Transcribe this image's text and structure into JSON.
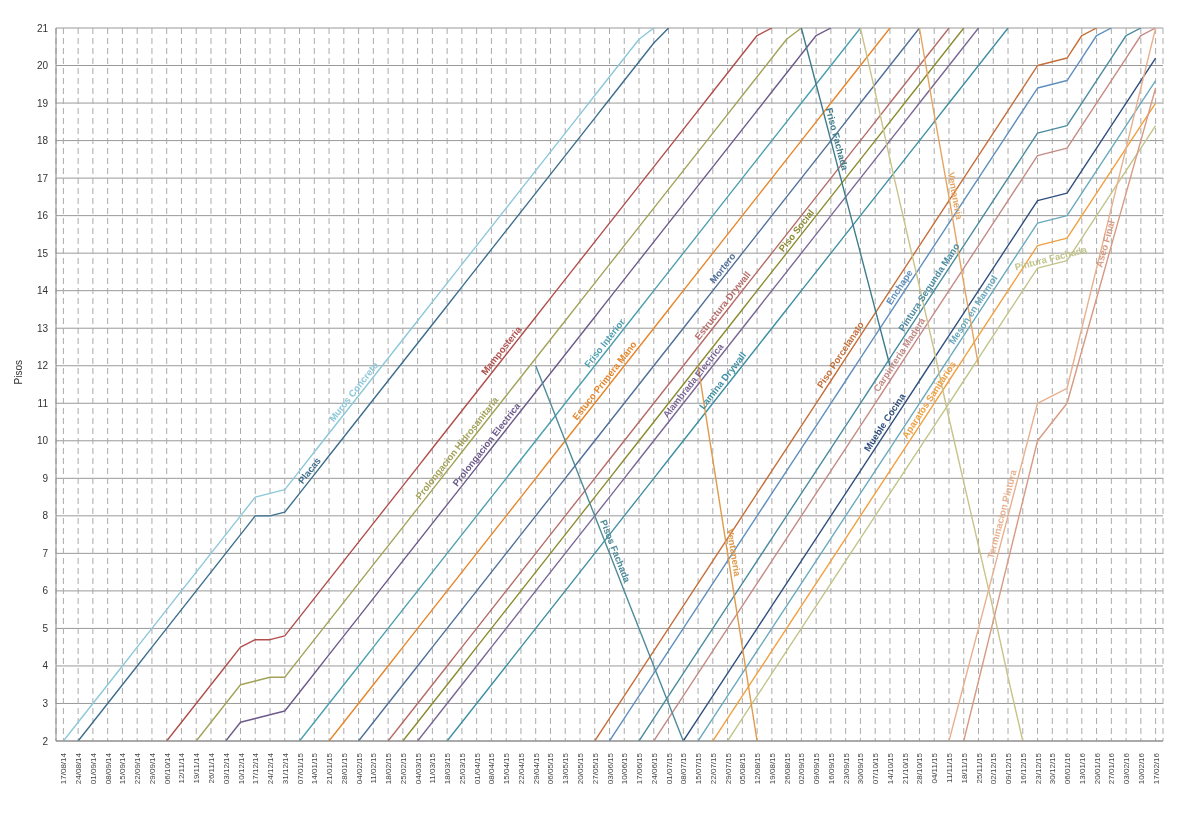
{
  "chart_data": {
    "type": "line",
    "ylabel": "Pisos",
    "ylim": [
      2,
      21
    ],
    "yticks": [
      2,
      3,
      4,
      5,
      6,
      7,
      8,
      9,
      10,
      11,
      12,
      13,
      14,
      15,
      16,
      17,
      18,
      19,
      20,
      21
    ],
    "grid": true,
    "categories": [
      "17/08/14",
      "24/08/14",
      "01/09/14",
      "08/09/14",
      "15/09/14",
      "22/09/14",
      "29/09/14",
      "06/10/14",
      "12/11/14",
      "19/11/14",
      "26/11/14",
      "03/12/14",
      "10/12/14",
      "17/12/14",
      "24/12/14",
      "31/12/14",
      "07/01/15",
      "14/01/15",
      "21/01/15",
      "28/01/15",
      "04/02/15",
      "11/02/15",
      "18/02/15",
      "25/02/15",
      "04/03/15",
      "11/03/15",
      "18/03/15",
      "25/03/15",
      "01/04/15",
      "08/04/15",
      "15/04/15",
      "22/04/15",
      "29/04/15",
      "06/05/15",
      "13/05/15",
      "20/05/15",
      "27/05/15",
      "03/06/15",
      "10/06/15",
      "17/06/15",
      "24/06/15",
      "01/07/15",
      "08/07/15",
      "15/07/15",
      "22/07/15",
      "29/07/15",
      "05/08/15",
      "12/08/15",
      "19/08/15",
      "26/08/15",
      "02/09/15",
      "09/09/15",
      "16/09/15",
      "23/09/15",
      "30/09/15",
      "07/10/15",
      "14/10/15",
      "21/10/15",
      "28/10/15",
      "04/11/15",
      "11/11/15",
      "18/11/15",
      "25/11/15",
      "02/12/15",
      "09/12/15",
      "16/12/15",
      "23/12/15",
      "30/12/15",
      "06/01/16",
      "13/01/16",
      "20/01/16",
      "27/01/16",
      "03/02/16",
      "10/02/16",
      "17/02/16"
    ],
    "series": [
      {
        "name": "Muros Concreto",
        "color": "#8cc8d8",
        "values": [
          2,
          2.5,
          3,
          3.5,
          4,
          4.5,
          5,
          5.5,
          6,
          6.5,
          7,
          7.5,
          8,
          8.5,
          8.6,
          8.7,
          9.2,
          9.7,
          10.2,
          10.7,
          11.2,
          11.7,
          12.2,
          12.7,
          13.2,
          13.7,
          14.2,
          14.7,
          15.2,
          15.7,
          16.2,
          16.7,
          17.2,
          17.7,
          18.2,
          18.7,
          19.2,
          19.7,
          20.2,
          20.7,
          21,
          null,
          null,
          null,
          null,
          null,
          null,
          null,
          null,
          null,
          null,
          null,
          null,
          null,
          null,
          null,
          null,
          null,
          null,
          null,
          null,
          null,
          null,
          null,
          null,
          null,
          null,
          null,
          null,
          null,
          null,
          null,
          null,
          null,
          null
        ]
      },
      {
        "name": "Placas",
        "color": "#3d6e8e",
        "values": [
          null,
          2,
          2.5,
          3,
          3.5,
          4,
          4.5,
          5,
          5.5,
          6,
          6.5,
          7,
          7.5,
          8,
          8,
          8.1,
          8.6,
          9.1,
          9.6,
          10.1,
          10.6,
          11.1,
          11.6,
          12.1,
          12.6,
          13.1,
          13.6,
          14.1,
          14.6,
          15.1,
          15.6,
          16.1,
          16.6,
          17.1,
          17.6,
          18.1,
          18.6,
          19.1,
          19.6,
          20.1,
          20.6,
          21,
          null,
          null,
          null,
          null,
          null,
          null,
          null,
          null,
          null,
          null,
          null,
          null,
          null,
          null,
          null,
          null,
          null,
          null,
          null,
          null,
          null,
          null,
          null,
          null,
          null,
          null,
          null,
          null,
          null,
          null,
          null,
          null,
          null
        ]
      },
      {
        "name": "Mamposteria",
        "color": "#b04e4c",
        "values": [
          null,
          null,
          null,
          null,
          null,
          null,
          null,
          2,
          2.5,
          3,
          3.5,
          4,
          4.5,
          4.7,
          4.7,
          4.8,
          5.3,
          5.8,
          6.3,
          6.8,
          7.3,
          7.8,
          8.3,
          8.8,
          9.3,
          9.8,
          10.3,
          10.8,
          11.3,
          11.8,
          12.3,
          12.8,
          13.3,
          13.8,
          14.3,
          14.8,
          15.3,
          15.8,
          16.3,
          16.8,
          17.3,
          17.8,
          18.3,
          18.8,
          19.3,
          19.8,
          20.3,
          20.8,
          21,
          null,
          null,
          null,
          null,
          null,
          null,
          null,
          null,
          null,
          null,
          null,
          null,
          null,
          null,
          null,
          null,
          null,
          null,
          null,
          null,
          null,
          null,
          null,
          null,
          null,
          null
        ]
      },
      {
        "name": "Prolongacion Hidrosanitaria",
        "color": "#a3a258",
        "values": [
          null,
          null,
          null,
          null,
          null,
          null,
          null,
          null,
          null,
          2,
          2.5,
          3,
          3.5,
          3.6,
          3.7,
          3.7,
          4.2,
          4.7,
          5.2,
          5.7,
          6.2,
          6.7,
          7.2,
          7.7,
          8.2,
          8.7,
          9.2,
          9.7,
          10.2,
          10.7,
          11.2,
          11.7,
          12.2,
          12.7,
          13.2,
          13.7,
          14.2,
          14.7,
          15.2,
          15.7,
          16.2,
          16.7,
          17.2,
          17.7,
          18.2,
          18.7,
          19.2,
          19.7,
          20.2,
          20.7,
          21,
          null,
          null,
          null,
          null,
          null,
          null,
          null,
          null,
          null,
          null,
          null,
          null,
          null,
          null,
          null,
          null,
          null,
          null,
          null,
          null,
          null,
          null,
          null,
          null
        ]
      },
      {
        "name": "Prolongacion Electrica",
        "color": "#6d5a8c",
        "values": [
          null,
          null,
          null,
          null,
          null,
          null,
          null,
          null,
          null,
          null,
          null,
          2,
          2.5,
          2.6,
          2.7,
          2.8,
          3.3,
          3.8,
          4.3,
          4.8,
          5.3,
          5.8,
          6.3,
          6.8,
          7.3,
          7.8,
          8.3,
          8.8,
          9.3,
          9.8,
          10.3,
          10.8,
          11.3,
          11.8,
          12.3,
          12.8,
          13.3,
          13.8,
          14.3,
          14.8,
          15.3,
          15.8,
          16.3,
          16.8,
          17.3,
          17.8,
          18.3,
          18.8,
          19.3,
          19.8,
          20.3,
          20.8,
          21,
          null,
          null,
          null,
          null,
          null,
          null,
          null,
          null,
          null,
          null,
          null,
          null,
          null,
          null,
          null,
          null,
          null,
          null,
          null,
          null,
          null,
          null
        ]
      },
      {
        "name": "Friso Interior",
        "color": "#4c9fb0",
        "values": [
          null,
          null,
          null,
          null,
          null,
          null,
          null,
          null,
          null,
          null,
          null,
          null,
          null,
          null,
          null,
          null,
          2,
          2.5,
          3,
          3.5,
          4,
          4.5,
          5,
          5.5,
          6,
          6.5,
          7,
          7.5,
          8,
          8.5,
          9,
          9.5,
          10,
          10.5,
          11,
          11.5,
          12,
          12.5,
          13,
          13.5,
          14,
          14.5,
          15,
          15.5,
          16,
          16.5,
          17,
          17.5,
          18,
          18.5,
          19,
          19.5,
          20,
          20.5,
          21,
          null,
          null,
          null,
          null,
          null,
          null,
          null,
          null,
          null,
          null,
          null,
          null,
          null,
          null,
          null,
          null,
          null,
          null,
          null,
          null
        ]
      },
      {
        "name": "Estuco Primera Mano",
        "color": "#e6862a",
        "values": [
          null,
          null,
          null,
          null,
          null,
          null,
          null,
          null,
          null,
          null,
          null,
          null,
          null,
          null,
          null,
          null,
          null,
          null,
          2,
          2.5,
          3,
          3.5,
          4,
          4.5,
          5,
          5.5,
          6,
          6.5,
          7,
          7.5,
          8,
          8.5,
          9,
          9.5,
          10,
          10.5,
          11,
          11.5,
          12,
          12.5,
          13,
          13.5,
          14,
          14.5,
          15,
          15.5,
          16,
          16.5,
          17,
          17.5,
          18,
          18.5,
          19,
          19.5,
          20,
          20.5,
          21,
          null,
          null,
          null,
          null,
          null,
          null,
          null,
          null,
          null,
          null,
          null,
          null,
          null,
          null,
          null,
          null,
          null,
          null
        ]
      },
      {
        "name": "Mortero",
        "color": "#4f6f99",
        "values": [
          null,
          null,
          null,
          null,
          null,
          null,
          null,
          null,
          null,
          null,
          null,
          null,
          null,
          null,
          null,
          null,
          null,
          null,
          null,
          null,
          2,
          2.5,
          3,
          3.5,
          4,
          4.5,
          5,
          5.5,
          6,
          6.5,
          7,
          7.5,
          8,
          8.5,
          9,
          9.5,
          10,
          10.5,
          11,
          11.5,
          12,
          12.5,
          13,
          13.5,
          14,
          14.5,
          15,
          15.5,
          16,
          16.5,
          17,
          17.5,
          18,
          18.5,
          19,
          19.5,
          20,
          20.5,
          21,
          null,
          null,
          null,
          null,
          null,
          null,
          null,
          null,
          null,
          null,
          null,
          null,
          null,
          null,
          null,
          null
        ]
      },
      {
        "name": "Estructura Drywall",
        "color": "#b56b68",
        "values": [
          null,
          null,
          null,
          null,
          null,
          null,
          null,
          null,
          null,
          null,
          null,
          null,
          null,
          null,
          null,
          null,
          null,
          null,
          null,
          null,
          null,
          null,
          2,
          2.5,
          3,
          3.5,
          4,
          4.5,
          5,
          5.5,
          6,
          6.5,
          7,
          7.5,
          8,
          8.5,
          9,
          9.5,
          10,
          10.5,
          11,
          11.5,
          12,
          12.5,
          13,
          13.5,
          14,
          14.5,
          15,
          15.5,
          16,
          16.5,
          17,
          17.5,
          18,
          18.5,
          19,
          19.5,
          20,
          20.5,
          21,
          null,
          null,
          null,
          null,
          null,
          null,
          null,
          null,
          null,
          null,
          null,
          null,
          null,
          null
        ]
      },
      {
        "name": "Piso Social",
        "color": "#8b8b30",
        "values": [
          null,
          null,
          null,
          null,
          null,
          null,
          null,
          null,
          null,
          null,
          null,
          null,
          null,
          null,
          null,
          null,
          null,
          null,
          null,
          null,
          null,
          null,
          null,
          2,
          2.5,
          3,
          3.5,
          4,
          4.5,
          5,
          5.5,
          6,
          6.5,
          7,
          7.5,
          8,
          8.5,
          9,
          9.5,
          10,
          10.5,
          11,
          11.5,
          12,
          12.5,
          13,
          13.5,
          14,
          14.5,
          15,
          15.5,
          16,
          16.5,
          17,
          17.5,
          18,
          18.5,
          19,
          19.5,
          20,
          20.5,
          21,
          null,
          null,
          null,
          null,
          null,
          null,
          null,
          null,
          null,
          null,
          null,
          null,
          null
        ]
      },
      {
        "name": "Alambrada Electrica",
        "color": "#7a6696",
        "values": [
          null,
          null,
          null,
          null,
          null,
          null,
          null,
          null,
          null,
          null,
          null,
          null,
          null,
          null,
          null,
          null,
          null,
          null,
          null,
          null,
          null,
          null,
          null,
          null,
          2,
          2.5,
          3,
          3.5,
          4,
          4.5,
          5,
          5.5,
          6,
          6.5,
          7,
          7.5,
          8,
          8.5,
          9,
          9.5,
          10,
          10.5,
          11,
          11.5,
          12,
          12.5,
          13,
          13.5,
          14,
          14.5,
          15,
          15.5,
          16,
          16.5,
          17,
          17.5,
          18,
          18.5,
          19,
          19.5,
          20,
          20.5,
          21,
          null,
          null,
          null,
          null,
          null,
          null,
          null,
          null,
          null,
          null,
          null,
          null
        ]
      },
      {
        "name": "Lamina Drywall",
        "color": "#3f8fa3",
        "values": [
          null,
          null,
          null,
          null,
          null,
          null,
          null,
          null,
          null,
          null,
          null,
          null,
          null,
          null,
          null,
          null,
          null,
          null,
          null,
          null,
          null,
          null,
          null,
          null,
          null,
          null,
          2,
          2.5,
          3,
          3.5,
          4,
          4.5,
          5,
          5.5,
          6,
          6.5,
          7,
          7.5,
          8,
          8.5,
          9,
          9.5,
          10,
          10.5,
          11,
          11.5,
          12,
          12.5,
          13,
          13.5,
          14,
          14.5,
          15,
          15.5,
          16,
          16.5,
          17,
          17.5,
          18,
          18.5,
          19,
          19.5,
          20,
          20.5,
          21,
          null,
          null,
          null,
          null,
          null,
          null,
          null,
          null,
          null,
          null
        ]
      },
      {
        "name": "Piso Porcelanato",
        "color": "#c56f3a",
        "values": [
          null,
          null,
          null,
          null,
          null,
          null,
          null,
          null,
          null,
          null,
          null,
          null,
          null,
          null,
          null,
          null,
          null,
          null,
          null,
          null,
          null,
          null,
          null,
          null,
          null,
          null,
          null,
          null,
          null,
          null,
          null,
          null,
          null,
          null,
          null,
          null,
          2,
          2.6,
          3.2,
          3.8,
          4.4,
          5,
          5.6,
          6.2,
          6.8,
          7.4,
          8,
          8.6,
          9.2,
          9.8,
          10.4,
          11,
          11.6,
          12.2,
          12.8,
          13.4,
          14,
          14.6,
          15.2,
          15.8,
          16.4,
          17,
          17.6,
          18.2,
          18.8,
          19.4,
          20,
          20.1,
          20.2,
          20.8,
          21,
          null,
          null,
          null,
          null
        ]
      },
      {
        "name": "Enchape",
        "color": "#5f8fbf",
        "values": [
          null,
          null,
          null,
          null,
          null,
          null,
          null,
          null,
          null,
          null,
          null,
          null,
          null,
          null,
          null,
          null,
          null,
          null,
          null,
          null,
          null,
          null,
          null,
          null,
          null,
          null,
          null,
          null,
          null,
          null,
          null,
          null,
          null,
          null,
          null,
          null,
          null,
          2,
          2.6,
          3.2,
          3.8,
          4.4,
          5,
          5.6,
          6.2,
          6.8,
          7.4,
          8,
          8.6,
          9.2,
          9.8,
          10.4,
          11,
          11.6,
          12.2,
          12.8,
          13.4,
          14,
          14.6,
          15.2,
          15.8,
          16.4,
          17,
          17.6,
          18.2,
          18.8,
          19.4,
          19.5,
          19.6,
          20.2,
          20.8,
          21,
          null,
          null,
          null
        ]
      },
      {
        "name": "Pintura Segunda Mano",
        "color": "#4a8ba0",
        "values": [
          null,
          null,
          null,
          null,
          null,
          null,
          null,
          null,
          null,
          null,
          null,
          null,
          null,
          null,
          null,
          null,
          null,
          null,
          null,
          null,
          null,
          null,
          null,
          null,
          null,
          null,
          null,
          null,
          null,
          null,
          null,
          null,
          null,
          null,
          null,
          null,
          null,
          null,
          null,
          2,
          2.6,
          3.2,
          3.8,
          4.4,
          5,
          5.6,
          6.2,
          6.8,
          7.4,
          8,
          8.6,
          9.2,
          9.8,
          10.4,
          11,
          11.6,
          12.2,
          12.8,
          13.4,
          14,
          14.6,
          15.2,
          15.8,
          16.4,
          17,
          17.6,
          18.2,
          18.3,
          18.4,
          19,
          19.6,
          20.2,
          20.8,
          21,
          null
        ]
      },
      {
        "name": "Carpinteria Madera",
        "color": "#c48a86",
        "values": [
          null,
          null,
          null,
          null,
          null,
          null,
          null,
          null,
          null,
          null,
          null,
          null,
          null,
          null,
          null,
          null,
          null,
          null,
          null,
          null,
          null,
          null,
          null,
          null,
          null,
          null,
          null,
          null,
          null,
          null,
          null,
          null,
          null,
          null,
          null,
          null,
          null,
          null,
          null,
          null,
          2,
          2.6,
          3.2,
          3.8,
          4.4,
          5,
          5.6,
          6.2,
          6.8,
          7.4,
          8,
          8.6,
          9.2,
          9.8,
          10.4,
          11,
          11.6,
          12.2,
          12.8,
          13.4,
          14,
          14.6,
          15.2,
          15.8,
          16.4,
          17,
          17.6,
          17.7,
          17.8,
          18.4,
          19,
          19.6,
          20.2,
          20.8,
          21
        ]
      },
      {
        "name": "Mueble Cocina",
        "color": "#2f4f7f",
        "values": [
          null,
          null,
          null,
          null,
          null,
          null,
          null,
          null,
          null,
          null,
          null,
          null,
          null,
          null,
          null,
          null,
          null,
          null,
          null,
          null,
          null,
          null,
          null,
          null,
          null,
          null,
          null,
          null,
          null,
          null,
          null,
          null,
          null,
          null,
          null,
          null,
          null,
          null,
          null,
          null,
          null,
          null,
          2,
          2.6,
          3.2,
          3.8,
          4.4,
          5,
          5.6,
          6.2,
          6.8,
          7.4,
          8,
          8.6,
          9.2,
          9.8,
          10.4,
          11,
          11.6,
          12.2,
          12.8,
          13.4,
          14,
          14.6,
          15.2,
          15.8,
          16.4,
          16.5,
          16.6,
          17.2,
          17.8,
          18.4,
          19,
          19.6,
          20.2
        ]
      },
      {
        "name": "Meson en Marmol",
        "color": "#6aa9bd",
        "values": [
          null,
          null,
          null,
          null,
          null,
          null,
          null,
          null,
          null,
          null,
          null,
          null,
          null,
          null,
          null,
          null,
          null,
          null,
          null,
          null,
          null,
          null,
          null,
          null,
          null,
          null,
          null,
          null,
          null,
          null,
          null,
          null,
          null,
          null,
          null,
          null,
          null,
          null,
          null,
          null,
          null,
          null,
          null,
          2,
          2.6,
          3.2,
          3.8,
          4.4,
          5,
          5.6,
          6.2,
          6.8,
          7.4,
          8,
          8.6,
          9.2,
          9.8,
          10.4,
          11,
          11.6,
          12.2,
          12.8,
          13.4,
          14,
          14.6,
          15.2,
          15.8,
          15.9,
          16,
          16.6,
          17.2,
          17.8,
          18.4,
          19,
          19.6
        ]
      },
      {
        "name": "Aparatos Sanitarios",
        "color": "#f0a040",
        "values": [
          null,
          null,
          null,
          null,
          null,
          null,
          null,
          null,
          null,
          null,
          null,
          null,
          null,
          null,
          null,
          null,
          null,
          null,
          null,
          null,
          null,
          null,
          null,
          null,
          null,
          null,
          null,
          null,
          null,
          null,
          null,
          null,
          null,
          null,
          null,
          null,
          null,
          null,
          null,
          null,
          null,
          null,
          null,
          null,
          2,
          2.6,
          3.2,
          3.8,
          4.4,
          5,
          5.6,
          6.2,
          6.8,
          7.4,
          8,
          8.6,
          9.2,
          9.8,
          10.4,
          11,
          11.6,
          12.2,
          12.8,
          13.4,
          14,
          14.6,
          15.2,
          15.3,
          15.4,
          16,
          16.6,
          17.2,
          17.8,
          18.4,
          19
        ]
      },
      {
        "name": "Pintura Fachada",
        "color": "#c2c489",
        "values": [
          null,
          null,
          null,
          null,
          null,
          null,
          null,
          null,
          null,
          null,
          null,
          null,
          null,
          null,
          null,
          null,
          null,
          null,
          null,
          null,
          null,
          null,
          null,
          null,
          null,
          null,
          null,
          null,
          null,
          null,
          null,
          null,
          null,
          null,
          null,
          null,
          null,
          null,
          null,
          null,
          null,
          null,
          null,
          null,
          null,
          2,
          2.6,
          3.2,
          3.8,
          4.4,
          5,
          5.6,
          6.2,
          6.8,
          7.4,
          8,
          8.6,
          9.2,
          9.8,
          10.4,
          11,
          11.6,
          12.2,
          12.8,
          13.4,
          14,
          14.6,
          14.7,
          14.8,
          15.4,
          16,
          16.6,
          17.2,
          17.8,
          18.4
        ]
      },
      {
        "name": "Pisos Fachada",
        "color": "#4e8b99",
        "values": [
          null,
          null,
          null,
          null,
          null,
          null,
          null,
          null,
          null,
          null,
          null,
          null,
          null,
          null,
          null,
          null,
          null,
          null,
          null,
          null,
          null,
          null,
          null,
          null,
          null,
          null,
          null,
          null,
          null,
          null,
          null,
          null,
          12,
          11,
          10,
          9,
          8,
          7,
          6,
          5,
          4,
          3,
          2,
          null,
          null,
          null,
          null,
          null,
          null,
          null,
          null,
          null,
          null,
          null,
          null,
          null,
          null,
          null,
          null,
          null,
          null,
          null,
          null,
          null,
          null,
          null,
          null,
          null,
          null,
          null,
          null,
          null,
          null,
          null,
          null
        ]
      },
      {
        "name": "Ventaneria",
        "color": "#e09a4a",
        "values": [
          null,
          null,
          null,
          null,
          null,
          null,
          null,
          null,
          null,
          null,
          null,
          null,
          null,
          null,
          null,
          null,
          null,
          null,
          null,
          null,
          null,
          null,
          null,
          null,
          null,
          null,
          null,
          null,
          null,
          null,
          null,
          null,
          null,
          null,
          null,
          null,
          null,
          null,
          null,
          null,
          null,
          null,
          null,
          12,
          9.5,
          7,
          4.5,
          2,
          null,
          null,
          null,
          null,
          null,
          null,
          null,
          null,
          null,
          null,
          null,
          null,
          null,
          null,
          null,
          null,
          null,
          null,
          null,
          null,
          null,
          null,
          null,
          null,
          null,
          null,
          null
        ]
      },
      {
        "name": "Friso Fachada",
        "color": "#3e7c8c",
        "values": [
          null,
          null,
          null,
          null,
          null,
          null,
          null,
          null,
          null,
          null,
          null,
          null,
          null,
          null,
          null,
          null,
          null,
          null,
          null,
          null,
          null,
          null,
          null,
          null,
          null,
          null,
          null,
          null,
          null,
          null,
          null,
          null,
          null,
          null,
          null,
          null,
          null,
          null,
          null,
          null,
          null,
          null,
          null,
          null,
          null,
          null,
          null,
          null,
          null,
          null,
          21,
          19.5,
          18,
          16.5,
          15,
          13.5,
          12,
          null,
          null,
          null,
          null,
          null,
          null,
          null,
          null,
          null,
          null,
          null,
          null,
          null,
          null,
          null,
          null,
          null,
          null
        ]
      },
      {
        "color": "#c9c28a",
        "values": [
          null,
          null,
          null,
          null,
          null,
          null,
          null,
          null,
          null,
          null,
          null,
          null,
          null,
          null,
          null,
          null,
          null,
          null,
          null,
          null,
          null,
          null,
          null,
          null,
          null,
          null,
          null,
          null,
          null,
          null,
          null,
          null,
          null,
          null,
          null,
          null,
          null,
          null,
          null,
          null,
          null,
          null,
          null,
          null,
          null,
          null,
          null,
          null,
          null,
          null,
          null,
          null,
          null,
          null,
          21,
          19.3,
          17.5,
          15.8,
          14.1,
          12.4,
          10.6,
          8.9,
          7.2,
          5.5,
          3.7,
          2,
          null,
          null,
          null,
          null,
          null,
          null,
          null,
          null,
          null
        ]
      },
      {
        "name": "Ventaneria",
        "color": "#e5a560",
        "values": [
          null,
          null,
          null,
          null,
          null,
          null,
          null,
          null,
          null,
          null,
          null,
          null,
          null,
          null,
          null,
          null,
          null,
          null,
          null,
          null,
          null,
          null,
          null,
          null,
          null,
          null,
          null,
          null,
          null,
          null,
          null,
          null,
          null,
          null,
          null,
          null,
          null,
          null,
          null,
          null,
          null,
          null,
          null,
          null,
          null,
          null,
          null,
          null,
          null,
          null,
          null,
          null,
          null,
          null,
          null,
          null,
          null,
          null,
          21,
          18.7,
          16.5,
          14.2,
          12,
          null,
          null,
          null,
          null,
          null,
          null,
          null,
          null,
          null,
          null,
          null,
          null
        ]
      },
      {
        "name": "Terminacion Pintura",
        "color": "#e8b08e",
        "values": [
          null,
          null,
          null,
          null,
          null,
          null,
          null,
          null,
          null,
          null,
          null,
          null,
          null,
          null,
          null,
          null,
          null,
          null,
          null,
          null,
          null,
          null,
          null,
          null,
          null,
          null,
          null,
          null,
          null,
          null,
          null,
          null,
          null,
          null,
          null,
          null,
          null,
          null,
          null,
          null,
          null,
          null,
          null,
          null,
          null,
          null,
          null,
          null,
          null,
          null,
          null,
          null,
          null,
          null,
          null,
          null,
          null,
          null,
          null,
          null,
          2,
          3.5,
          5,
          6.5,
          8,
          9.5,
          11,
          11.2,
          11.4,
          13,
          14.6,
          16.2,
          17.8,
          19.4,
          21
        ]
      },
      {
        "name": "Aseo Final",
        "color": "#d79a82",
        "values": [
          null,
          null,
          null,
          null,
          null,
          null,
          null,
          null,
          null,
          null,
          null,
          null,
          null,
          null,
          null,
          null,
          null,
          null,
          null,
          null,
          null,
          null,
          null,
          null,
          null,
          null,
          null,
          null,
          null,
          null,
          null,
          null,
          null,
          null,
          null,
          null,
          null,
          null,
          null,
          null,
          null,
          null,
          null,
          null,
          null,
          null,
          null,
          null,
          null,
          null,
          null,
          null,
          null,
          null,
          null,
          null,
          null,
          null,
          null,
          null,
          null,
          2,
          3.6,
          5.2,
          6.8,
          8.4,
          10,
          10.5,
          11,
          12.4,
          13.8,
          15.2,
          16.6,
          18,
          19.4
        ]
      }
    ]
  }
}
